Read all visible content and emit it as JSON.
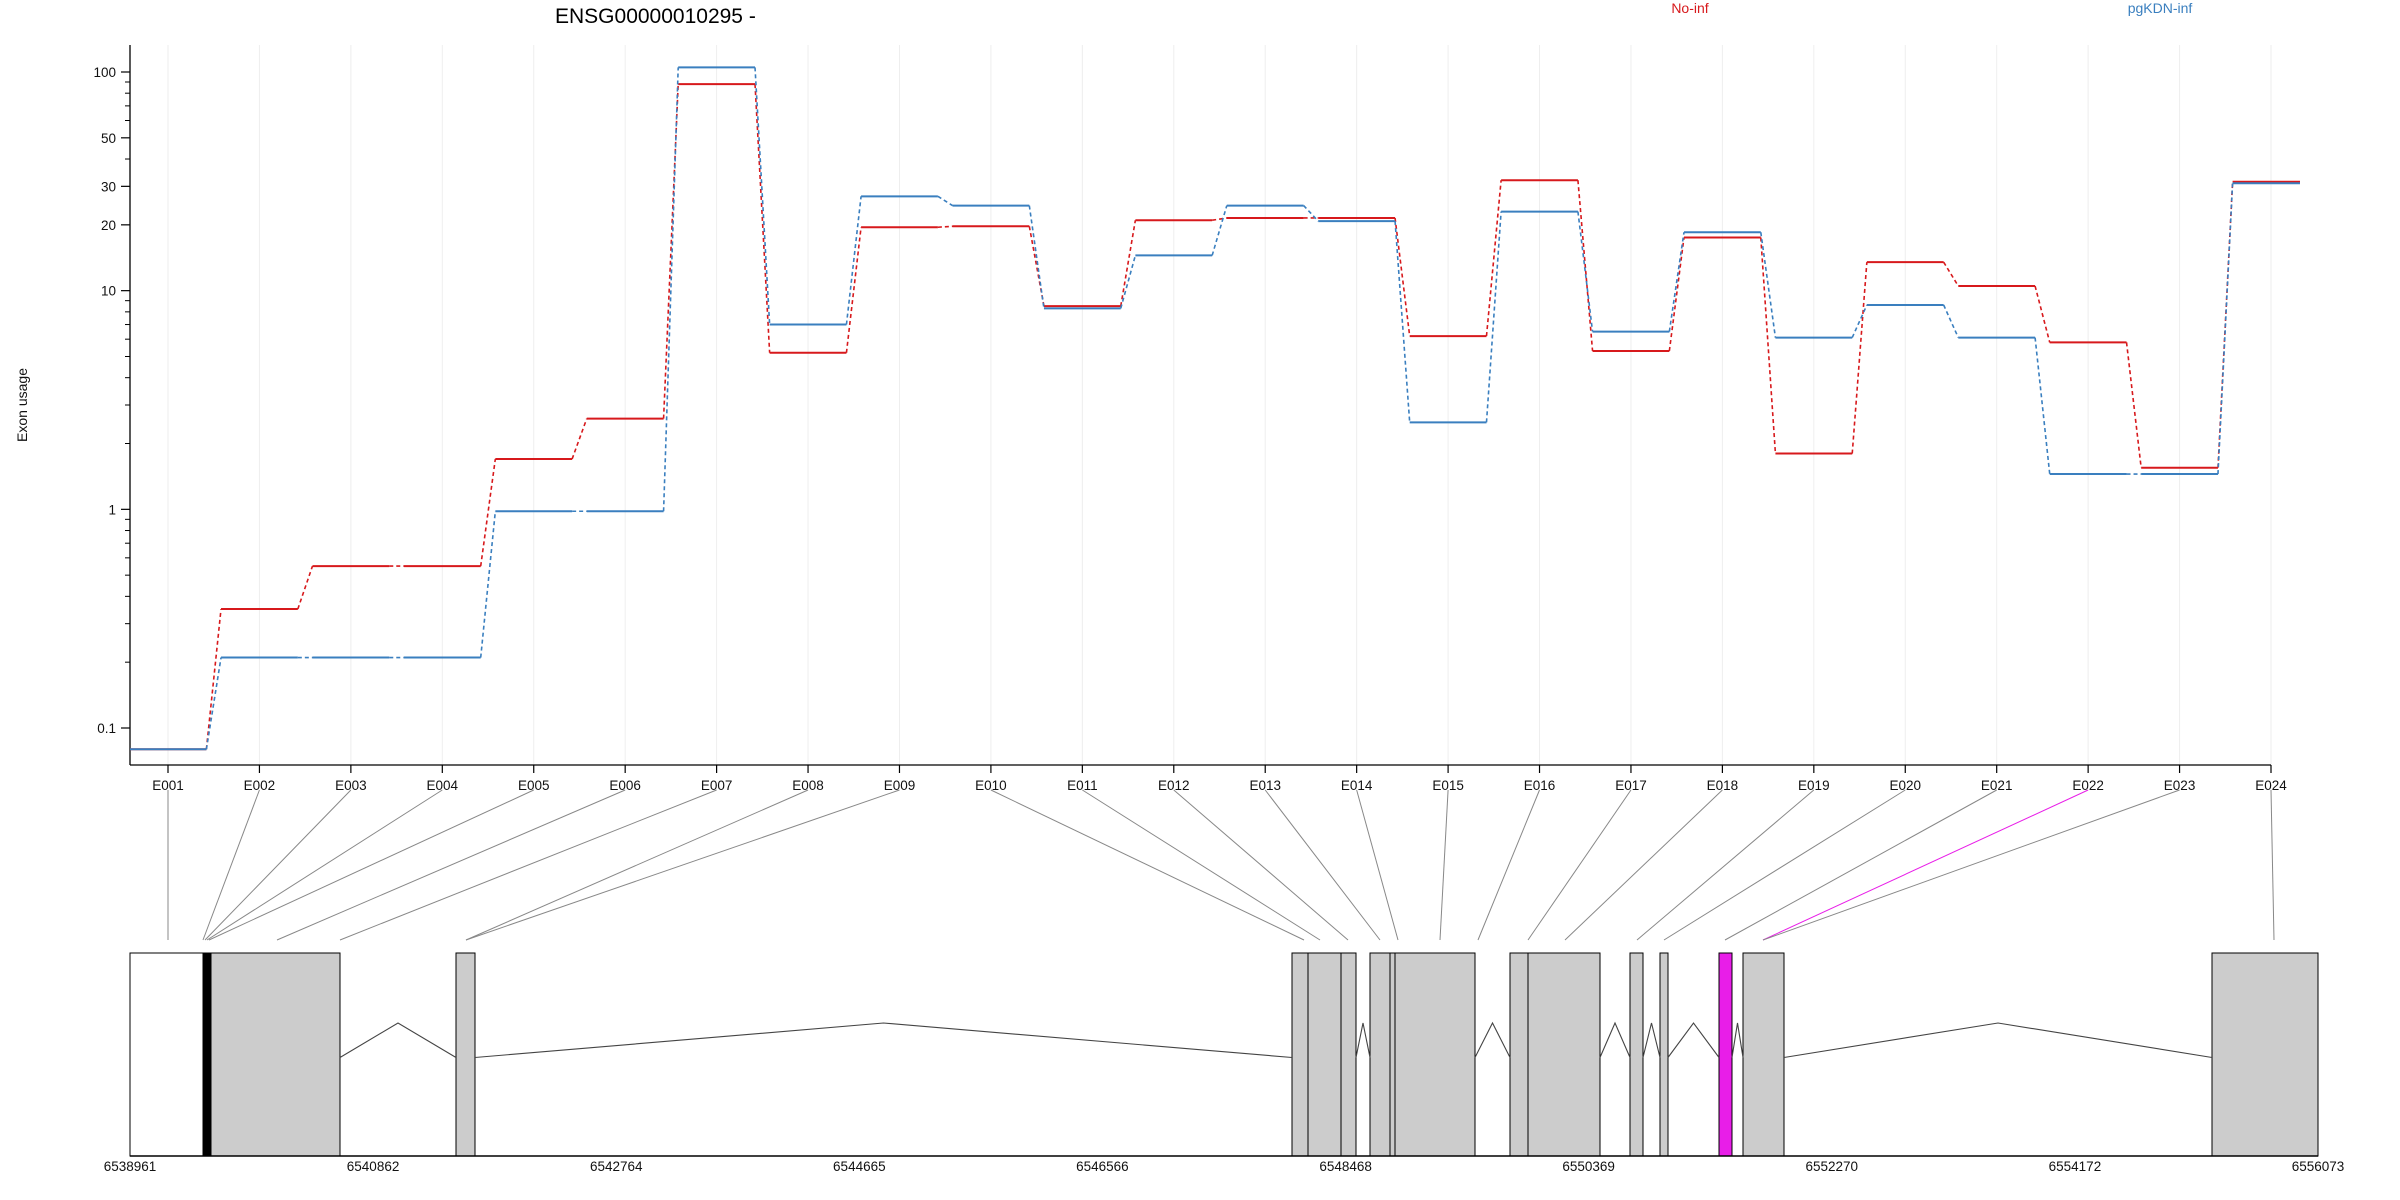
{
  "chart_data": {
    "type": "line",
    "title": "ENSG00000010295 -",
    "ylabel": "Exon usage",
    "xlabel": "",
    "y_scale": "log",
    "ylim": [
      0.07,
      135
    ],
    "yticks": [
      0.1,
      1,
      10,
      20,
      30,
      50,
      100
    ],
    "ytick_labels": [
      "0.1",
      "1",
      "10",
      "20",
      "30",
      "50",
      "100"
    ],
    "legend": [
      {
        "name": "No-inf",
        "color": "#d7191c"
      },
      {
        "name": "pgKDN-inf",
        "color": "#3a7fbf"
      }
    ],
    "legend_position": "top",
    "grid": "vertical",
    "categories": [
      "E001",
      "E002",
      "E003",
      "E004",
      "E005",
      "E006",
      "E007",
      "E008",
      "E009",
      "E010",
      "E011",
      "E012",
      "E013",
      "E014",
      "E015",
      "E016",
      "E017",
      "E018",
      "E019",
      "E020",
      "E021",
      "E022",
      "E023",
      "E024"
    ],
    "series": [
      {
        "name": "No-inf",
        "color": "#d7191c",
        "values": [
          0.08,
          0.35,
          0.55,
          0.55,
          1.7,
          2.6,
          88,
          5.2,
          19.5,
          19.7,
          8.5,
          21,
          21.5,
          21.5,
          6.2,
          32,
          5.3,
          17.5,
          1.8,
          13.5,
          10.5,
          5.8,
          1.55,
          31.5
        ]
      },
      {
        "name": "pgKDN-inf",
        "color": "#3a7fbf",
        "values": [
          0.08,
          0.21,
          0.21,
          0.21,
          0.98,
          0.98,
          105,
          7,
          27,
          24.5,
          8.3,
          14.5,
          24.5,
          20.8,
          2.5,
          23,
          6.5,
          18.5,
          6.1,
          8.6,
          6.1,
          1.45,
          1.45,
          31
        ]
      }
    ]
  },
  "gene_model": {
    "coord_labels": [
      "6538961",
      "6540862",
      "6542764",
      "6544665",
      "6546566",
      "6548468",
      "6550369",
      "6552270",
      "6554172",
      "6556073"
    ],
    "coord_range": [
      6538961,
      6556073
    ],
    "highlight_exon": "E022",
    "highlight_color": "#e81ee8",
    "exon_fill": "#cccccc"
  }
}
